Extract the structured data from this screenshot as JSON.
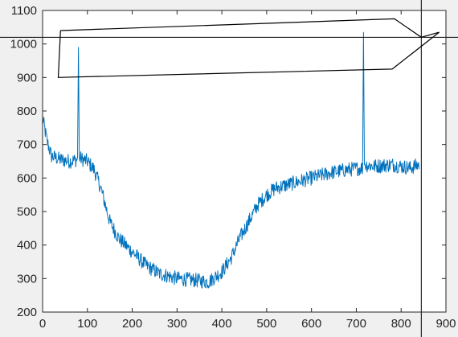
{
  "chart_data": {
    "type": "line",
    "title": "",
    "xlabel": "",
    "ylabel": "",
    "xlim": [
      0,
      900
    ],
    "ylim": [
      200,
      1100
    ],
    "xticks": [
      0,
      100,
      200,
      300,
      400,
      500,
      600,
      700,
      800,
      900
    ],
    "yticks": [
      200,
      300,
      400,
      500,
      600,
      700,
      800,
      900,
      1000,
      1100
    ],
    "grid": false,
    "colors": {
      "series": "#0072bd",
      "polygon": "#000000",
      "axes": "#262626",
      "background": "#ffffff"
    },
    "series": [
      {
        "profile": [
          [
            0,
            780
          ],
          [
            10,
            710
          ],
          [
            20,
            665
          ],
          [
            40,
            655
          ],
          [
            60,
            650
          ],
          [
            78,
            655
          ],
          [
            80,
            990
          ],
          [
            82,
            660
          ],
          [
            100,
            650
          ],
          [
            115,
            625
          ],
          [
            130,
            570
          ],
          [
            150,
            470
          ],
          [
            170,
            420
          ],
          [
            200,
            380
          ],
          [
            230,
            340
          ],
          [
            260,
            315
          ],
          [
            300,
            300
          ],
          [
            340,
            295
          ],
          [
            370,
            290
          ],
          [
            380,
            300
          ],
          [
            400,
            320
          ],
          [
            420,
            360
          ],
          [
            440,
            420
          ],
          [
            460,
            470
          ],
          [
            480,
            520
          ],
          [
            500,
            550
          ],
          [
            520,
            570
          ],
          [
            560,
            585
          ],
          [
            600,
            600
          ],
          [
            640,
            615
          ],
          [
            680,
            625
          ],
          [
            714,
            630
          ],
          [
            716,
            1035
          ],
          [
            718,
            640
          ],
          [
            740,
            635
          ],
          [
            780,
            640
          ],
          [
            820,
            630
          ],
          [
            840,
            640
          ]
        ],
        "noise": 22,
        "step": 1
      }
    ],
    "annotations": {
      "polygon": [
        [
          40,
          1040
        ],
        [
          785,
          1075
        ],
        [
          845,
          1020
        ],
        [
          885,
          1035
        ],
        [
          780,
          925
        ],
        [
          35,
          900
        ],
        [
          40,
          1040
        ]
      ],
      "crosshair": {
        "x": 845,
        "y": 1020
      }
    }
  }
}
